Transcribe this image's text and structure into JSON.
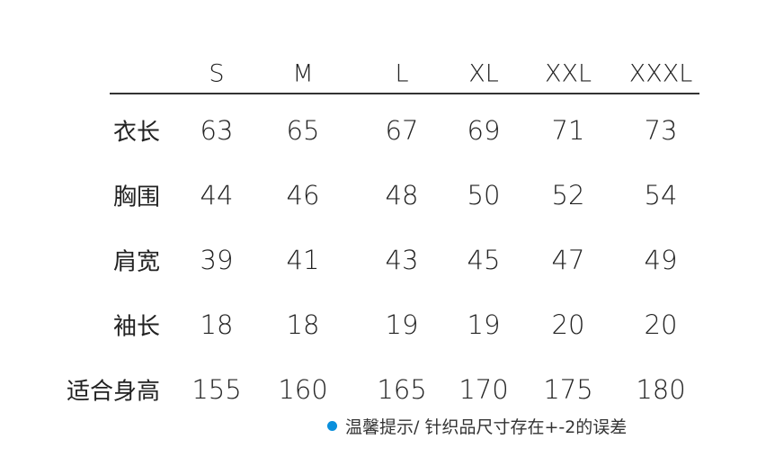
{
  "table": {
    "headers": [
      "S",
      "M",
      "L",
      "XL",
      "XXL",
      "XXXL"
    ],
    "rows": [
      {
        "label": "衣长",
        "values": [
          "63",
          "65",
          "67",
          "69",
          "71",
          "73"
        ]
      },
      {
        "label": "胸围",
        "values": [
          "44",
          "46",
          "48",
          "50",
          "52",
          "54"
        ]
      },
      {
        "label": "肩宽",
        "values": [
          "39",
          "41",
          "43",
          "45",
          "47",
          "49"
        ]
      },
      {
        "label": "袖长",
        "values": [
          "18",
          "18",
          "19",
          "19",
          "20",
          "20"
        ]
      },
      {
        "label": "适合身高",
        "values": [
          "155",
          "160",
          "165",
          "170",
          "175",
          "180"
        ]
      }
    ]
  },
  "note": {
    "text": "温馨提示/ 针织品尺寸存在+-2的误差",
    "dot_color": "#0a8fdc"
  }
}
